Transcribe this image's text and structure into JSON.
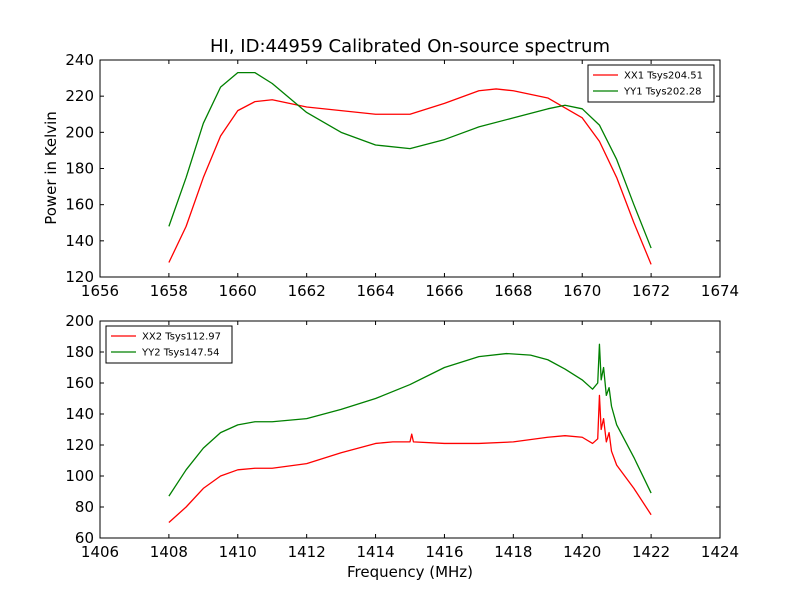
{
  "title": "HI, ID:44959 Calibrated On-source spectrum",
  "ylabel": "Power in Kelvin",
  "xlabel": "Frequency (MHz)",
  "colors": {
    "red": "#ff0000",
    "green": "#008000"
  },
  "chart_data": [
    {
      "type": "line",
      "xlim": [
        1656,
        1674
      ],
      "ylim": [
        120,
        240
      ],
      "xticks": [
        "1656",
        "1658",
        "1660",
        "1662",
        "1664",
        "1666",
        "1668",
        "1670",
        "1672",
        "1674"
      ],
      "yticks": [
        "120",
        "140",
        "160",
        "180",
        "200",
        "220",
        "240"
      ],
      "legend_position": "top-right",
      "series": [
        {
          "name": "XX1 Tsys204.51",
          "color": "#ff0000",
          "x": [
            1658,
            1658.5,
            1659,
            1659.5,
            1660,
            1660.5,
            1661,
            1661.5,
            1662,
            1663,
            1664,
            1665,
            1666,
            1667,
            1667.5,
            1668,
            1669,
            1670,
            1670.5,
            1671,
            1671.5,
            1672
          ],
          "y": [
            128,
            148,
            175,
            198,
            212,
            217,
            218,
            216,
            214,
            212,
            210,
            210,
            216,
            223,
            224,
            223,
            219,
            208,
            195,
            175,
            150,
            127
          ]
        },
        {
          "name": "YY1 Tsys202.28",
          "color": "#008000",
          "x": [
            1658,
            1658.5,
            1659,
            1659.5,
            1660,
            1660.5,
            1661,
            1661.5,
            1662,
            1663,
            1664,
            1665,
            1666,
            1667,
            1668,
            1669,
            1669.5,
            1670,
            1670.5,
            1671,
            1671.5,
            1672
          ],
          "y": [
            148,
            175,
            205,
            225,
            233,
            233,
            227,
            219,
            211,
            200,
            193,
            191,
            196,
            203,
            208,
            213,
            215,
            213,
            204,
            185,
            160,
            136
          ]
        }
      ]
    },
    {
      "type": "line",
      "xlim": [
        1406,
        1424
      ],
      "ylim": [
        60,
        200
      ],
      "xticks": [
        "1406",
        "1408",
        "1410",
        "1412",
        "1414",
        "1416",
        "1418",
        "1420",
        "1422",
        "1424"
      ],
      "yticks": [
        "60",
        "80",
        "100",
        "120",
        "140",
        "160",
        "180",
        "200"
      ],
      "legend_position": "top-left",
      "series": [
        {
          "name": "XX2 Tsys112.97",
          "color": "#ff0000",
          "x": [
            1408,
            1408.5,
            1409,
            1409.5,
            1410,
            1410.5,
            1411,
            1412,
            1413,
            1414,
            1414.5,
            1415,
            1415.05,
            1415.1,
            1416,
            1417,
            1418,
            1419,
            1419.5,
            1420,
            1420.3,
            1420.45,
            1420.5,
            1420.55,
            1420.62,
            1420.7,
            1420.78,
            1420.85,
            1421,
            1421.5,
            1422
          ],
          "y": [
            70,
            80,
            92,
            100,
            104,
            105,
            105,
            108,
            115,
            121,
            122,
            122,
            127,
            122,
            121,
            121,
            122,
            125,
            126,
            125,
            121,
            124,
            152,
            130,
            137,
            122,
            128,
            116,
            107,
            92,
            75
          ]
        },
        {
          "name": "YY2 Tsys147.54",
          "color": "#008000",
          "x": [
            1408,
            1408.5,
            1409,
            1409.5,
            1410,
            1410.5,
            1411,
            1412,
            1413,
            1414,
            1415,
            1416,
            1417,
            1417.8,
            1418.5,
            1419,
            1419.5,
            1420,
            1420.3,
            1420.45,
            1420.5,
            1420.55,
            1420.62,
            1420.7,
            1420.78,
            1420.85,
            1421,
            1421.5,
            1422
          ],
          "y": [
            87,
            104,
            118,
            128,
            133,
            135,
            135,
            137,
            143,
            150,
            159,
            170,
            177,
            179,
            178,
            175,
            169,
            162,
            156,
            160,
            185,
            162,
            170,
            152,
            157,
            145,
            133,
            112,
            89
          ]
        }
      ]
    }
  ]
}
